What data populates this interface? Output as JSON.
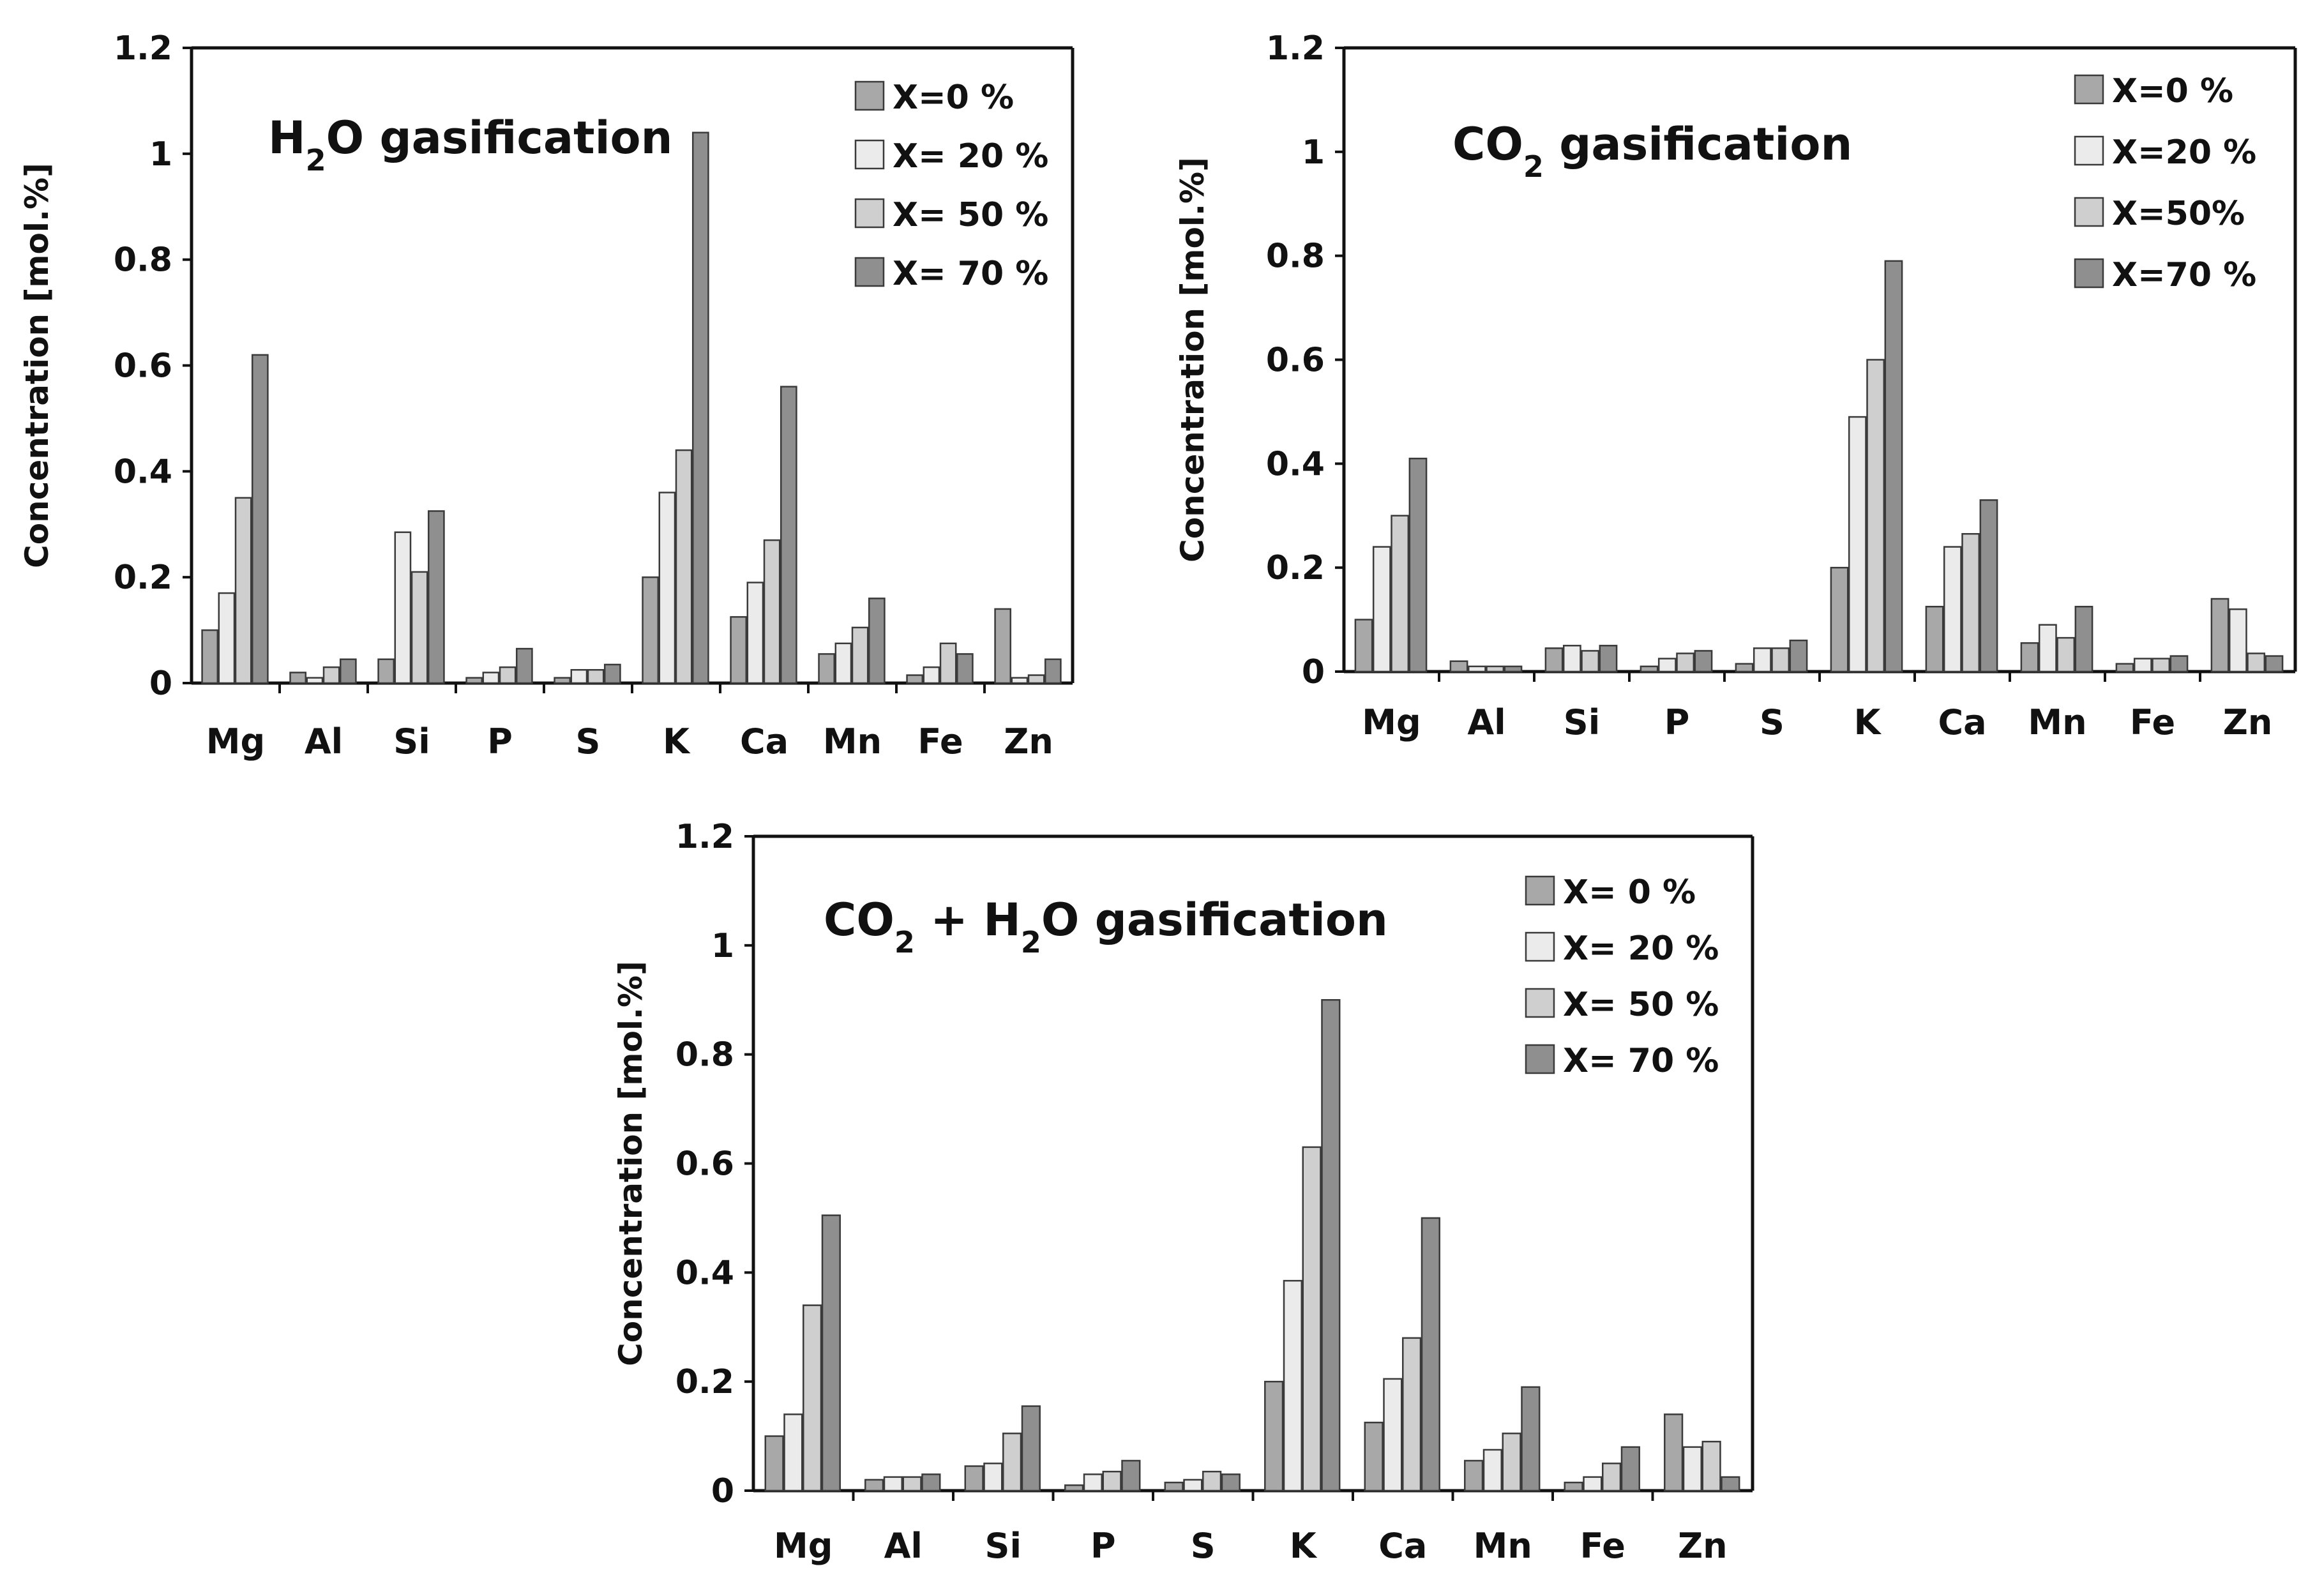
{
  "colors": {
    "X0": "#a8a8a8",
    "X20": "#ebebeb",
    "X50": "#cfcfcf",
    "X70": "#8f8f8f",
    "axis": "#111111"
  },
  "chart_data": [
    {
      "type": "bar",
      "title": {
        "pre": "H",
        "sub": "2",
        "post": "O gasification"
      },
      "ylabel": "Concentration [mol.%]",
      "xlabel": "",
      "ylim": [
        0,
        1.2
      ],
      "yticks": [
        "0",
        "0.2",
        "0.4",
        "0.6",
        "0.8",
        "1",
        "1.2"
      ],
      "categories": [
        "Mg",
        "Al",
        "Si",
        "P",
        "S",
        "K",
        "Ca",
        "Mn",
        "Fe",
        "Zn"
      ],
      "legend_position": "top-right",
      "series": [
        {
          "name": "X=0 %",
          "values": [
            0.1,
            0.02,
            0.045,
            0.01,
            0.01,
            0.2,
            0.125,
            0.055,
            0.015,
            0.14
          ]
        },
        {
          "name": "X= 20 %",
          "values": [
            0.17,
            0.01,
            0.285,
            0.02,
            0.025,
            0.36,
            0.19,
            0.075,
            0.03,
            0.01
          ]
        },
        {
          "name": "X= 50 %",
          "values": [
            0.35,
            0.03,
            0.21,
            0.03,
            0.025,
            0.44,
            0.27,
            0.105,
            0.075,
            0.015
          ]
        },
        {
          "name": "X= 70 %",
          "values": [
            0.62,
            0.045,
            0.325,
            0.065,
            0.035,
            1.04,
            0.56,
            0.16,
            0.055,
            0.045
          ]
        }
      ]
    },
    {
      "type": "bar",
      "title": {
        "pre": "CO",
        "sub": "2",
        "post": " gasification"
      },
      "ylabel": "Concentration [mol.%]",
      "xlabel": "",
      "ylim": [
        0,
        1.2
      ],
      "yticks": [
        "0",
        "0.2",
        "0.4",
        "0.6",
        "0.8",
        "1",
        "1.2"
      ],
      "categories": [
        "Mg",
        "Al",
        "Si",
        "P",
        "S",
        "K",
        "Ca",
        "Mn",
        "Fe",
        "Zn"
      ],
      "legend_position": "top-right",
      "series": [
        {
          "name": "X=0 %",
          "values": [
            0.1,
            0.02,
            0.045,
            0.01,
            0.015,
            0.2,
            0.125,
            0.055,
            0.015,
            0.14
          ]
        },
        {
          "name": "X=20 %",
          "values": [
            0.24,
            0.01,
            0.05,
            0.025,
            0.045,
            0.49,
            0.24,
            0.09,
            0.025,
            0.12
          ]
        },
        {
          "name": "X=50%",
          "values": [
            0.3,
            0.01,
            0.04,
            0.035,
            0.045,
            0.6,
            0.265,
            0.065,
            0.025,
            0.035
          ]
        },
        {
          "name": "X=70 %",
          "values": [
            0.41,
            0.01,
            0.05,
            0.04,
            0.06,
            0.79,
            0.33,
            0.125,
            0.03,
            0.03
          ]
        }
      ]
    },
    {
      "type": "bar",
      "title": {
        "pre": "CO",
        "sub": "2",
        "mid": " + H",
        "sub2": "2",
        "post": "O gasification"
      },
      "ylabel": "Concentration [mol.%]",
      "xlabel": "",
      "ylim": [
        0,
        1.2
      ],
      "yticks": [
        "0",
        "0.2",
        "0.4",
        "0.6",
        "0.8",
        "1",
        "1.2"
      ],
      "categories": [
        "Mg",
        "Al",
        "Si",
        "P",
        "S",
        "K",
        "Ca",
        "Mn",
        "Fe",
        "Zn"
      ],
      "legend_position": "top-right",
      "series": [
        {
          "name": "X= 0 %",
          "values": [
            0.1,
            0.02,
            0.045,
            0.01,
            0.015,
            0.2,
            0.125,
            0.055,
            0.015,
            0.14
          ]
        },
        {
          "name": "X= 20 %",
          "values": [
            0.14,
            0.025,
            0.05,
            0.03,
            0.02,
            0.385,
            0.205,
            0.075,
            0.025,
            0.08
          ]
        },
        {
          "name": "X= 50 %",
          "values": [
            0.34,
            0.025,
            0.105,
            0.035,
            0.035,
            0.63,
            0.28,
            0.105,
            0.05,
            0.09
          ]
        },
        {
          "name": "X= 70 %",
          "values": [
            0.505,
            0.03,
            0.155,
            0.055,
            0.03,
            0.9,
            0.5,
            0.19,
            0.08,
            0.025
          ]
        }
      ]
    }
  ]
}
